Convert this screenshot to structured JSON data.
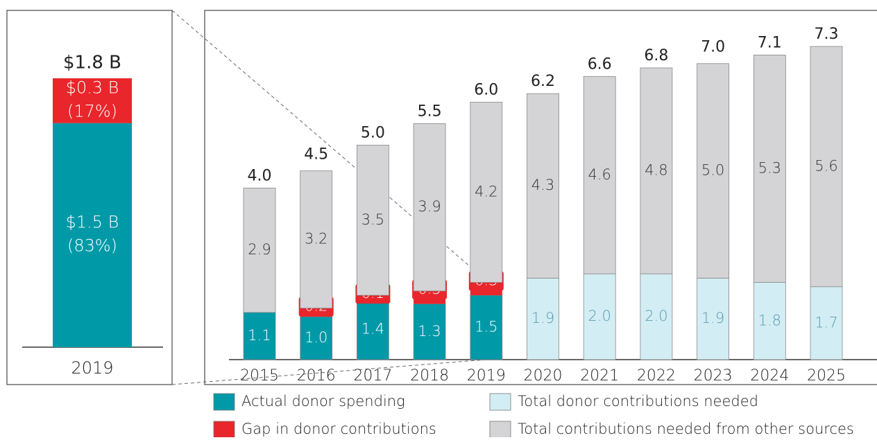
{
  "chart_data": {
    "type": "bar",
    "stacked": true,
    "categories": [
      "2015",
      "2016",
      "2017",
      "2018",
      "2019",
      "2020",
      "2021",
      "2022",
      "2023",
      "2024",
      "2025"
    ],
    "series": [
      {
        "name": "Actual donor spending",
        "color": "#0099a8",
        "values": [
          1.1,
          1.0,
          1.4,
          1.3,
          1.5,
          null,
          null,
          null,
          null,
          null,
          null
        ],
        "value_labels": [
          "1.1",
          "1.0",
          "1.4",
          "1.3",
          "1.5",
          null,
          null,
          null,
          null,
          null,
          null
        ]
      },
      {
        "name": "Gap in donor contributions",
        "color": "#e8262b",
        "values": [
          null,
          0.2,
          0.1,
          0.3,
          0.3,
          null,
          null,
          null,
          null,
          null,
          null
        ],
        "value_labels": [
          null,
          "0.2",
          "0.1",
          "0.3",
          "0.3",
          null,
          null,
          null,
          null,
          null,
          null
        ]
      },
      {
        "name": "Total donor contributions needed",
        "color": "#d3edf4",
        "values": [
          null,
          null,
          null,
          null,
          null,
          1.9,
          2.0,
          2.0,
          1.9,
          1.8,
          1.7
        ],
        "value_labels": [
          null,
          null,
          null,
          null,
          null,
          "1.9",
          "2.0",
          "2.0",
          "1.9",
          "1.8",
          "1.7"
        ]
      },
      {
        "name": "Total contributions needed from other sources",
        "color": "#d4d4d6",
        "values": [
          2.9,
          3.2,
          3.5,
          3.9,
          4.2,
          4.3,
          4.6,
          4.8,
          5.0,
          5.3,
          5.6
        ],
        "value_labels": [
          "2.9",
          "3.2",
          "3.5",
          "3.9",
          "4.2",
          "4.3",
          "4.6",
          "4.8",
          "5.0",
          "5.3",
          "5.6"
        ]
      }
    ],
    "totals": {
      "values": [
        4.0,
        4.5,
        5.0,
        5.5,
        6.0,
        6.2,
        6.6,
        6.8,
        7.0,
        7.1,
        7.3
      ],
      "value_labels": [
        "4.0",
        "4.5",
        "5.0",
        "5.5",
        "6.0",
        "6.2",
        "6.6",
        "6.8",
        "7.0",
        "7.1",
        "7.3"
      ]
    },
    "inset": {
      "category": "2019",
      "segments": [
        {
          "color": "#0099a8",
          "value": 1.5,
          "value_label": "$1.5 B",
          "share": 83,
          "share_label": "(83%)"
        },
        {
          "color": "#e8262b",
          "value": 0.3,
          "value_label": "$0.3 B",
          "share": 17,
          "share_label": "(17%)"
        }
      ],
      "total": 1.8,
      "total_label": "$1.8 B"
    }
  }
}
